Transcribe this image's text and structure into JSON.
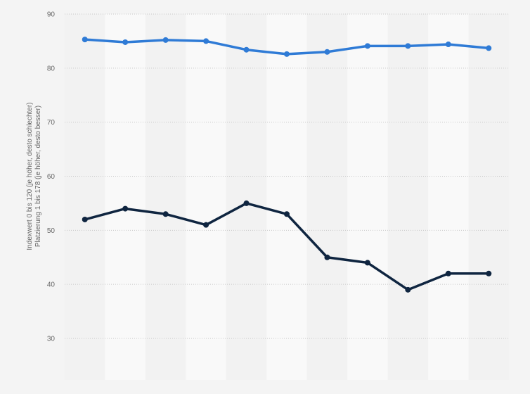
{
  "chart_data": {
    "type": "line",
    "title": "",
    "xlabel": "",
    "ylabel_lines": [
      "Indexwert 0 bis 120 (je höher, desto schlechter)",
      "Platzierung 1 bis 178 (je höher, desto besser)"
    ],
    "ylim": [
      30,
      90
    ],
    "yticks": [
      90,
      80,
      70,
      60,
      50,
      40,
      30
    ],
    "grid": true,
    "legend": "none",
    "x": [
      1,
      2,
      3,
      4,
      5,
      6,
      7,
      8,
      9,
      10,
      11
    ],
    "series": [
      {
        "color": "#2f7bd6",
        "values": [
          85.3,
          84.8,
          85.2,
          85.0,
          83.4,
          82.6,
          83.0,
          84.1,
          84.1,
          84.4,
          83.7
        ]
      },
      {
        "color": "#0f2540",
        "values": [
          52,
          54,
          53,
          51,
          55,
          53,
          45,
          44,
          39,
          42,
          42
        ]
      }
    ]
  }
}
